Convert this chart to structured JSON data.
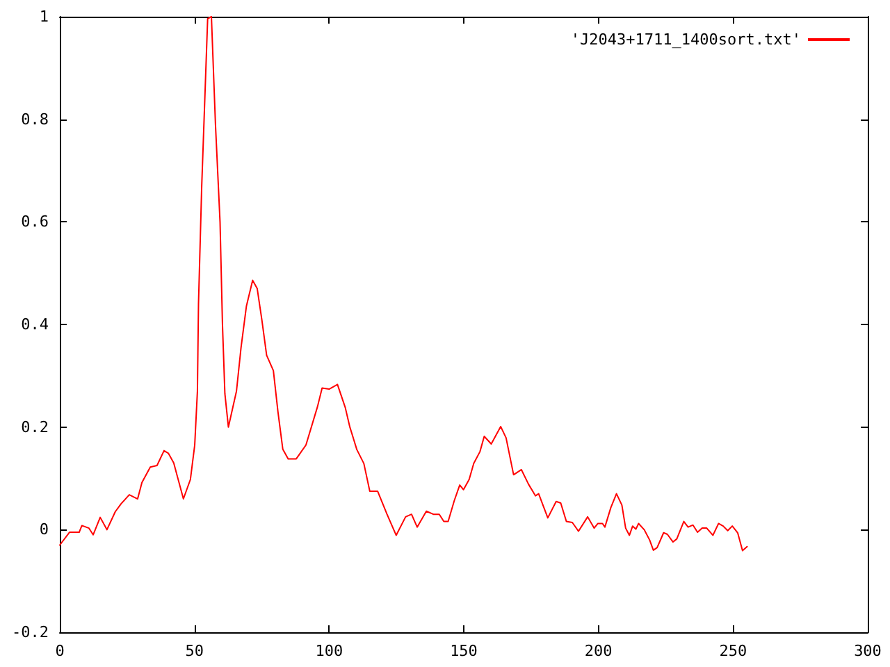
{
  "chart_data": {
    "type": "line",
    "legend": "top right",
    "grid": false,
    "marker": "none",
    "line_style": "solid",
    "xlim": [
      0,
      300
    ],
    "xticks": [
      0,
      50,
      100,
      150,
      200,
      250,
      300
    ],
    "ylim": [
      -0.2,
      1
    ],
    "yticks": [
      -0.2,
      0,
      0.2,
      0.4,
      0.6,
      0.8,
      1
    ],
    "series": [
      {
        "name": "'J2043+1711_1400sort.txt'",
        "color": "#ff0000",
        "x": [
          0,
          3.6,
          7.2,
          8.2,
          10.8,
          12.4,
          15,
          17.5,
          20.6,
          22.7,
          25.8,
          28.9,
          30.5,
          33.6,
          36.1,
          38.7,
          40.3,
          42.3,
          45.9,
          48.5,
          50.1,
          51.1,
          51.5,
          52.7,
          54.9,
          56.3,
          57.8,
          59.5,
          60.4,
          61.3,
          62.6,
          65.6,
          67.3,
          69.3,
          71.6,
          73.3,
          75,
          76.8,
          79.3,
          81,
          82.8,
          84.8,
          87.8,
          91.4,
          95.7,
          97.4,
          100,
          103.1,
          106,
          107.7,
          110.3,
          112.9,
          115.1,
          118,
          121.5,
          124.9,
          128.4,
          130.6,
          132.7,
          136.1,
          138.7,
          140.9,
          142.6,
          144.2,
          146.5,
          148.5,
          149.9,
          152,
          153.7,
          156,
          157.6,
          160.2,
          163.7,
          165.7,
          168.5,
          171.4,
          174,
          176.6,
          177.8,
          181.2,
          184.3,
          186,
          188.1,
          190.3,
          192.6,
          196,
          198.4,
          199.8,
          201.5,
          202.4,
          204.6,
          206.7,
          208.7,
          210.1,
          211.5,
          212.7,
          213.9,
          214.9,
          217,
          219,
          220.4,
          221.8,
          224.2,
          225.6,
          227.7,
          229.1,
          231.7,
          233.3,
          235.1,
          236.8,
          238.5,
          240.2,
          242.5,
          244.6,
          246.3,
          248,
          249.7,
          251.7,
          253.5,
          255.2
        ],
        "values": [
          -0.03,
          -0.005,
          -0.005,
          0.008,
          0.003,
          -0.01,
          0.024,
          0,
          0.035,
          0.05,
          0.068,
          0.06,
          0.092,
          0.122,
          0.125,
          0.154,
          0.149,
          0.13,
          0.06,
          0.098,
          0.165,
          0.27,
          0.44,
          0.67,
          0.996,
          1.0,
          0.79,
          0.6,
          0.4,
          0.265,
          0.2,
          0.27,
          0.355,
          0.436,
          0.486,
          0.47,
          0.41,
          0.34,
          0.31,
          0.23,
          0.157,
          0.138,
          0.138,
          0.165,
          0.24,
          0.276,
          0.274,
          0.283,
          0.238,
          0.2,
          0.156,
          0.129,
          0.075,
          0.075,
          0.03,
          -0.011,
          0.025,
          0.03,
          0.005,
          0.036,
          0.03,
          0.03,
          0.016,
          0.016,
          0.057,
          0.087,
          0.078,
          0.098,
          0.129,
          0.152,
          0.182,
          0.167,
          0.201,
          0.179,
          0.107,
          0.117,
          0.089,
          0.066,
          0.07,
          0.023,
          0.055,
          0.052,
          0.016,
          0.014,
          -0.003,
          0.025,
          0.003,
          0.012,
          0.012,
          0.005,
          0.043,
          0.07,
          0.048,
          0.003,
          -0.011,
          0.007,
          0.001,
          0.012,
          0,
          -0.02,
          -0.04,
          -0.035,
          -0.006,
          -0.009,
          -0.024,
          -0.018,
          0.016,
          0.005,
          0.009,
          -0.005,
          0.003,
          0.003,
          -0.011,
          0.012,
          0.007,
          -0.002,
          0.007,
          -0.006,
          -0.041,
          -0.033
        ]
      }
    ]
  }
}
